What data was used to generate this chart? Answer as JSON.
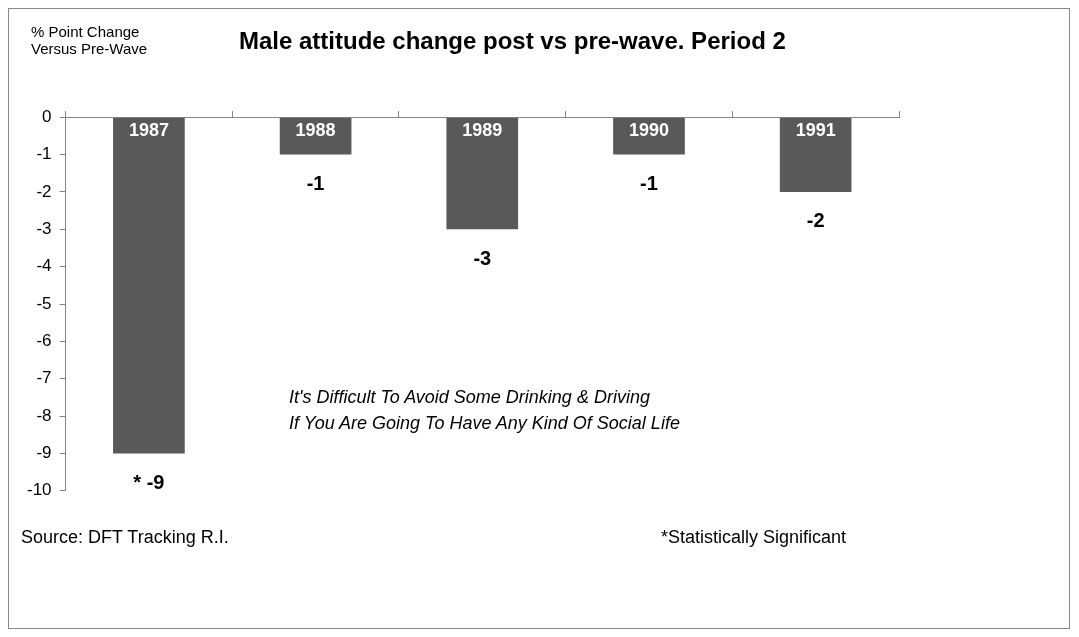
{
  "chart_data": {
    "type": "bar",
    "title": "Male attitude change post vs pre-wave. Period 2",
    "ylabel": "% Point Change Versus Pre-Wave",
    "categories": [
      "1987",
      "1988",
      "1989",
      "1990",
      "1991"
    ],
    "series": [
      {
        "color": "#595959",
        "values": [
          -9,
          -1,
          -3,
          -1,
          -2
        ],
        "value_labels": [
          "* -9",
          "-1",
          "-3",
          "-1",
          "-2"
        ]
      }
    ],
    "ylim": [
      -10,
      0
    ],
    "yticks": [
      0,
      -1,
      -2,
      -3,
      -4,
      -5,
      -6,
      -7,
      -8,
      -9,
      -10
    ],
    "legend": false,
    "annotations": [
      "It's Difficult To Avoid Some Drinking & Driving\nIf You Are Going To Have Any Kind Of Social Life",
      "Source: DFT Tracking R.I.",
      "*Statistically Significant"
    ]
  }
}
